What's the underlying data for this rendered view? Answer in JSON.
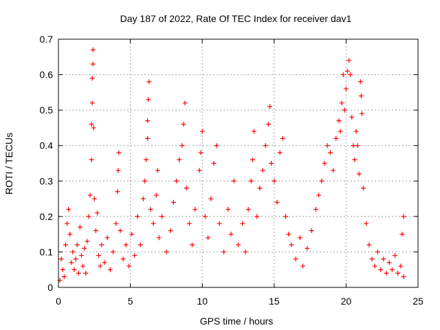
{
  "chart_data": {
    "type": "scatter",
    "title": "Day 187 of 2022, Rate Of TEC Index for receiver dav1",
    "xlabel": "GPS time / hours",
    "ylabel": "ROTI / TECUs",
    "xlim": [
      0,
      25
    ],
    "ylim": [
      0,
      0.7
    ],
    "xticks": [
      "0",
      "5",
      "10",
      "15",
      "20",
      "25"
    ],
    "yticks": [
      "0",
      "0.1",
      "0.2",
      "0.3",
      "0.4",
      "0.5",
      "0.6",
      "0.7"
    ],
    "grid": true,
    "marker": "plus",
    "color": "#ff0000",
    "series": [
      {
        "points": [
          [
            0.1,
            0.02
          ],
          [
            0.2,
            0.08
          ],
          [
            0.3,
            0.05
          ],
          [
            0.4,
            0.03
          ],
          [
            0.5,
            0.12
          ],
          [
            0.6,
            0.18
          ],
          [
            0.7,
            0.22
          ],
          [
            0.8,
            0.15
          ],
          [
            0.9,
            0.07
          ],
          [
            1.0,
            0.1
          ],
          [
            1.1,
            0.05
          ],
          [
            1.2,
            0.08
          ],
          [
            1.3,
            0.12
          ],
          [
            1.4,
            0.04
          ],
          [
            1.5,
            0.17
          ],
          [
            1.6,
            0.09
          ],
          [
            1.7,
            0.06
          ],
          [
            1.8,
            0.11
          ],
          [
            1.9,
            0.04
          ],
          [
            2.0,
            0.13
          ],
          [
            2.1,
            0.2
          ],
          [
            2.2,
            0.26
          ],
          [
            2.3,
            0.36
          ],
          [
            2.3,
            0.46
          ],
          [
            2.35,
            0.52
          ],
          [
            2.35,
            0.59
          ],
          [
            2.4,
            0.63
          ],
          [
            2.4,
            0.67
          ],
          [
            2.45,
            0.45
          ],
          [
            2.5,
            0.25
          ],
          [
            2.6,
            0.16
          ],
          [
            2.7,
            0.21
          ],
          [
            2.8,
            0.09
          ],
          [
            2.9,
            0.06
          ],
          [
            3.0,
            0.12
          ],
          [
            3.2,
            0.07
          ],
          [
            3.4,
            0.14
          ],
          [
            3.6,
            0.05
          ],
          [
            3.8,
            0.1
          ],
          [
            4.0,
            0.18
          ],
          [
            4.1,
            0.27
          ],
          [
            4.15,
            0.33
          ],
          [
            4.2,
            0.38
          ],
          [
            4.3,
            0.16
          ],
          [
            4.5,
            0.08
          ],
          [
            4.7,
            0.12
          ],
          [
            4.9,
            0.06
          ],
          [
            5.1,
            0.15
          ],
          [
            5.3,
            0.09
          ],
          [
            5.5,
            0.2
          ],
          [
            5.7,
            0.12
          ],
          [
            5.9,
            0.25
          ],
          [
            6.0,
            0.3
          ],
          [
            6.1,
            0.36
          ],
          [
            6.2,
            0.42
          ],
          [
            6.2,
            0.47
          ],
          [
            6.25,
            0.53
          ],
          [
            6.3,
            0.58
          ],
          [
            6.4,
            0.22
          ],
          [
            6.6,
            0.18
          ],
          [
            6.8,
            0.26
          ],
          [
            6.9,
            0.33
          ],
          [
            7.0,
            0.14
          ],
          [
            7.2,
            0.2
          ],
          [
            7.5,
            0.1
          ],
          [
            7.8,
            0.16
          ],
          [
            8.0,
            0.24
          ],
          [
            8.2,
            0.3
          ],
          [
            8.4,
            0.36
          ],
          [
            8.6,
            0.4
          ],
          [
            8.7,
            0.46
          ],
          [
            8.8,
            0.52
          ],
          [
            8.9,
            0.28
          ],
          [
            9.1,
            0.18
          ],
          [
            9.3,
            0.12
          ],
          [
            9.5,
            0.22
          ],
          [
            9.8,
            0.33
          ],
          [
            9.9,
            0.38
          ],
          [
            10.0,
            0.44
          ],
          [
            10.2,
            0.2
          ],
          [
            10.4,
            0.14
          ],
          [
            10.6,
            0.25
          ],
          [
            10.8,
            0.35
          ],
          [
            11.0,
            0.4
          ],
          [
            11.2,
            0.18
          ],
          [
            11.5,
            0.1
          ],
          [
            11.8,
            0.22
          ],
          [
            12.0,
            0.15
          ],
          [
            12.2,
            0.3
          ],
          [
            12.5,
            0.12
          ],
          [
            12.8,
            0.18
          ],
          [
            13.0,
            0.1
          ],
          [
            13.2,
            0.22
          ],
          [
            13.4,
            0.3
          ],
          [
            13.5,
            0.36
          ],
          [
            13.6,
            0.44
          ],
          [
            13.8,
            0.2
          ],
          [
            14.0,
            0.28
          ],
          [
            14.2,
            0.33
          ],
          [
            14.4,
            0.4
          ],
          [
            14.6,
            0.46
          ],
          [
            14.7,
            0.51
          ],
          [
            14.8,
            0.35
          ],
          [
            15.0,
            0.3
          ],
          [
            15.2,
            0.24
          ],
          [
            15.4,
            0.38
          ],
          [
            15.6,
            0.42
          ],
          [
            15.8,
            0.2
          ],
          [
            16.0,
            0.15
          ],
          [
            16.2,
            0.12
          ],
          [
            16.5,
            0.08
          ],
          [
            16.8,
            0.14
          ],
          [
            17.0,
            0.06
          ],
          [
            17.3,
            0.11
          ],
          [
            17.6,
            0.16
          ],
          [
            17.9,
            0.22
          ],
          [
            18.1,
            0.26
          ],
          [
            18.3,
            0.3
          ],
          [
            18.5,
            0.35
          ],
          [
            18.7,
            0.4
          ],
          [
            18.9,
            0.38
          ],
          [
            19.1,
            0.33
          ],
          [
            19.3,
            0.42
          ],
          [
            19.5,
            0.47
          ],
          [
            19.6,
            0.44
          ],
          [
            19.7,
            0.52
          ],
          [
            19.8,
            0.6
          ],
          [
            19.9,
            0.5
          ],
          [
            20.0,
            0.56
          ],
          [
            20.1,
            0.61
          ],
          [
            20.2,
            0.64
          ],
          [
            20.3,
            0.6
          ],
          [
            20.4,
            0.48
          ],
          [
            20.5,
            0.4
          ],
          [
            20.6,
            0.36
          ],
          [
            20.7,
            0.44
          ],
          [
            20.8,
            0.4
          ],
          [
            20.9,
            0.32
          ],
          [
            21.0,
            0.58
          ],
          [
            21.05,
            0.54
          ],
          [
            21.1,
            0.49
          ],
          [
            21.2,
            0.28
          ],
          [
            21.4,
            0.18
          ],
          [
            21.6,
            0.12
          ],
          [
            21.8,
            0.08
          ],
          [
            22.0,
            0.06
          ],
          [
            22.2,
            0.1
          ],
          [
            22.4,
            0.05
          ],
          [
            22.6,
            0.08
          ],
          [
            22.8,
            0.04
          ],
          [
            23.0,
            0.07
          ],
          [
            23.2,
            0.05
          ],
          [
            23.4,
            0.09
          ],
          [
            23.6,
            0.04
          ],
          [
            23.8,
            0.06
          ],
          [
            23.9,
            0.15
          ],
          [
            24.0,
            0.2
          ],
          [
            24.0,
            0.03
          ]
        ]
      }
    ]
  }
}
